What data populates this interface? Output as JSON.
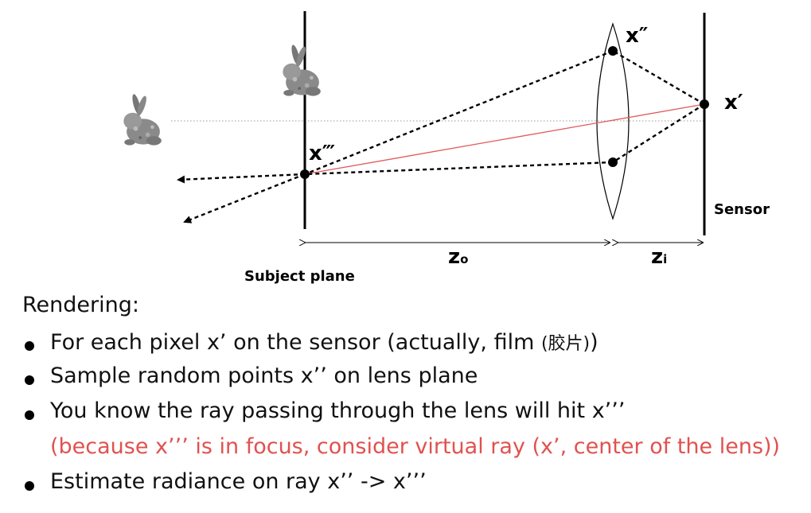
{
  "diagram": {
    "labels": {
      "x_double_prime": "x″",
      "x_prime": "x′",
      "x_triple_prime": "x‴",
      "sensor": "Sensor",
      "subject_plane": "Subject plane",
      "z_o": "z",
      "z_o_sub": "o",
      "z_i": "z",
      "z_i_sub": "i"
    },
    "colors": {
      "ray": "#000000",
      "virtual_ray": "#e05a5a",
      "axis": "#999999"
    },
    "icons": [
      "bunny-icon"
    ]
  },
  "text": {
    "heading": "Rendering:",
    "bullets": [
      {
        "text": "For each pixel x’ on the sensor (actually, film ",
        "cjk": "(胶片)",
        "tail": ")"
      },
      {
        "text": "Sample random points x’’ on lens plane"
      },
      {
        "text": "You know the ray passing through the lens will hit x’’’",
        "note": "(because x’’’ is in focus, consider virtual ray (x’, center of the lens))"
      },
      {
        "text": "Estimate radiance on ray x’’ -> x’’’"
      }
    ]
  }
}
